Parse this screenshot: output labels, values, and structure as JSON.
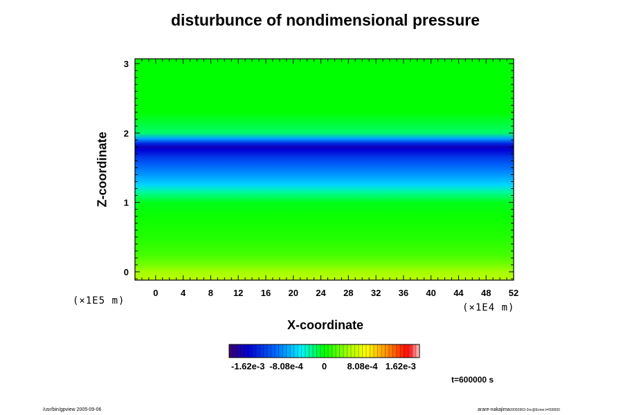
{
  "chart_data": {
    "type": "heatmap",
    "title": "disturbunce of nondimensional pressure",
    "xlabel": "X-coordinate",
    "ylabel": "Z-coordinate",
    "x_unit": "(×1E4 m)",
    "y_unit": "(×1E5 m)",
    "xlim": [
      -3,
      52
    ],
    "ylim": [
      -0.12,
      3.07
    ],
    "x_ticks": [
      "0",
      "4",
      "8",
      "12",
      "16",
      "20",
      "24",
      "28",
      "32",
      "36",
      "40",
      "44",
      "48",
      "52"
    ],
    "y_ticks": [
      "0",
      "1",
      "2",
      "3"
    ],
    "profile_z": [
      -0.12,
      0.0,
      0.1,
      0.25,
      0.5,
      0.8,
      1.0,
      1.15,
      1.25,
      1.4,
      1.55,
      1.65,
      1.75,
      1.8,
      1.85,
      1.92,
      2.0,
      2.3,
      3.07
    ],
    "profile_value": [
      0.0006,
      0.0005,
      0.00035,
      0.0002,
      0.0001,
      3e-05,
      -5e-05,
      -0.0003,
      -0.0006,
      -0.00085,
      -0.0011,
      -0.0013,
      -0.0016,
      -0.0017,
      -0.0014,
      -0.0008,
      -0.0002,
      0.0,
      0.0
    ],
    "colorbar": {
      "min": -0.00202,
      "max": 0.00202,
      "tick_values": [
        -0.00162,
        -0.000808,
        0,
        0.000808,
        0.00162
      ],
      "tick_labels": [
        "-1.62e-3",
        "-8.08e-4",
        "0",
        "8.08e-4",
        "1.62e-3"
      ]
    }
  },
  "time_label": "t=600000 s",
  "footer": {
    "left": "/usr/bin/gpview 2005-09-06",
    "right_main": "arare-nakajima",
    "right_small": "20050903-2nc@Exner.t=600000"
  }
}
